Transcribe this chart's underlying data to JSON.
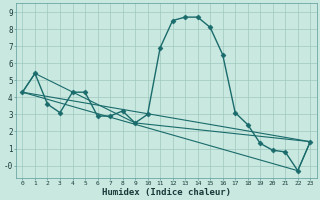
{
  "xlabel": "Humidex (Indice chaleur)",
  "background_color": "#c8e8e0",
  "grid_color": "#a0c8c0",
  "line_color": "#1a6b6b",
  "xlim": [
    -0.5,
    23.5
  ],
  "ylim": [
    -0.75,
    9.5
  ],
  "xticks": [
    0,
    1,
    2,
    3,
    4,
    5,
    6,
    7,
    8,
    9,
    10,
    11,
    12,
    13,
    14,
    15,
    16,
    17,
    18,
    19,
    20,
    21,
    22,
    23
  ],
  "yticks": [
    0,
    1,
    2,
    3,
    4,
    5,
    6,
    7,
    8,
    9
  ],
  "ytick_labels": [
    "-0",
    "1",
    "2",
    "3",
    "4",
    "5",
    "6",
    "7",
    "8",
    "9"
  ],
  "main_series": {
    "x": [
      0,
      1,
      2,
      3,
      4,
      5,
      6,
      7,
      8,
      9,
      10,
      11,
      12,
      13,
      14,
      15,
      16,
      17,
      18,
      19,
      20,
      21,
      22,
      23
    ],
    "y": [
      4.3,
      5.4,
      3.6,
      3.1,
      4.3,
      4.3,
      2.9,
      2.9,
      3.2,
      2.5,
      3.0,
      6.9,
      8.5,
      8.7,
      8.7,
      8.1,
      6.5,
      3.1,
      2.4,
      1.3,
      0.9,
      0.8,
      -0.3,
      1.4
    ]
  },
  "trend_lines": [
    {
      "x": [
        0,
        23
      ],
      "y": [
        4.3,
        1.4
      ]
    },
    {
      "x": [
        0,
        1,
        9,
        23
      ],
      "y": [
        4.3,
        5.4,
        2.5,
        1.4
      ]
    },
    {
      "x": [
        0,
        22,
        23
      ],
      "y": [
        4.3,
        -0.3,
        1.4
      ]
    }
  ]
}
